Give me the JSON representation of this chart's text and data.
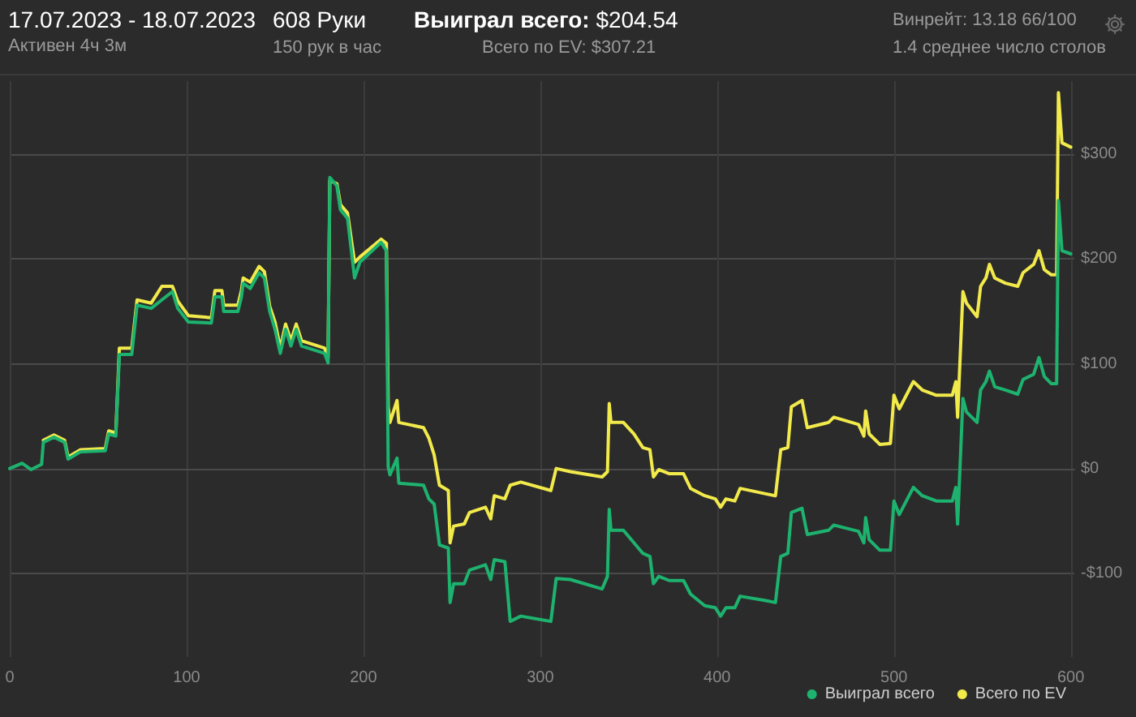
{
  "chart_data": {
    "type": "line",
    "title": "17.07.2023 - 18.07.2023",
    "subtitle": "Активен 4ч 3м",
    "annotations": [
      "608 Руки",
      "150 рук в час",
      "Выиграл всего: $204.54",
      "Всего по EV: $307.21",
      "Винрейт: 13.18 66/100",
      "1.4 среднее число столов"
    ],
    "x": [
      0,
      7,
      12,
      18,
      19,
      25,
      31,
      33,
      40,
      54,
      56,
      60,
      62,
      69,
      72,
      80,
      86,
      92,
      95,
      101,
      114,
      116,
      120,
      121,
      129,
      131,
      132,
      136,
      141,
      144,
      147,
      150,
      153,
      156,
      159,
      162,
      165,
      178,
      180,
      181,
      185,
      187,
      191,
      195,
      198,
      210,
      213,
      214,
      215,
      219,
      220,
      234,
      237,
      240,
      243,
      248,
      249,
      251,
      257,
      260,
      269,
      272,
      274,
      280,
      283,
      289,
      306,
      309,
      317,
      335,
      338,
      339,
      340,
      347,
      353,
      358,
      362,
      364,
      367,
      373,
      381,
      385,
      393,
      399,
      402,
      405,
      410,
      413,
      427,
      433,
      436,
      440,
      442,
      448,
      451,
      463,
      466,
      480,
      483,
      484,
      486,
      492,
      498,
      500,
      503,
      507,
      511,
      516,
      524,
      533,
      535,
      536,
      539,
      541,
      547,
      549,
      552,
      554,
      557,
      563,
      570,
      573,
      579,
      582,
      585,
      589,
      592,
      593,
      595,
      600
    ],
    "series": [
      {
        "name": "Выиграл всего",
        "color": "#1db36f",
        "values": [
          0,
          5,
          -1,
          4,
          25,
          30,
          25,
          9,
          16,
          17,
          33,
          31,
          109,
          109,
          156,
          153,
          161,
          169,
          153,
          140,
          139,
          164,
          164,
          150,
          150,
          164,
          177,
          172,
          187,
          182,
          150,
          133,
          110,
          133,
          117,
          133,
          117,
          110,
          101,
          278,
          270,
          247,
          239,
          182,
          197,
          216,
          208,
          2,
          -6,
          10,
          -14,
          -16,
          -29,
          -34,
          -73,
          -76,
          -128,
          -110,
          -110,
          -97,
          -92,
          -106,
          -87,
          -89,
          -146,
          -141,
          -146,
          -105,
          -106,
          -115,
          -103,
          -39,
          -59,
          -59,
          -71,
          -81,
          -84,
          -110,
          -103,
          -107,
          -107,
          -120,
          -131,
          -133,
          -141,
          -133,
          -133,
          -122,
          -126,
          -128,
          -84,
          -81,
          -42,
          -38,
          -63,
          -59,
          -54,
          -60,
          -71,
          -47,
          -68,
          -78,
          -78,
          -31,
          -44,
          -31,
          -18,
          -26,
          -31,
          -31,
          -18,
          -53,
          67,
          54,
          44,
          75,
          83,
          93,
          78,
          75,
          71,
          85,
          90,
          106,
          88,
          81,
          81,
          256,
          208,
          205
        ]
      },
      {
        "name": "Всего по EV",
        "color": "#f2ea4b",
        "values": [
          null,
          null,
          null,
          null,
          27,
          32,
          27,
          11,
          18,
          19,
          36,
          34,
          115,
          115,
          161,
          158,
          174,
          174,
          160,
          146,
          144,
          170,
          170,
          156,
          156,
          170,
          182,
          178,
          193,
          188,
          155,
          140,
          115,
          138,
          122,
          138,
          122,
          115,
          106,
          275,
          272,
          252,
          244,
          197,
          202,
          219,
          215,
          59,
          44,
          65,
          44,
          39,
          29,
          13,
          -16,
          -21,
          -71,
          -55,
          -53,
          -42,
          -37,
          -48,
          -26,
          -29,
          -16,
          -13,
          -21,
          0,
          -3,
          -8,
          -3,
          62,
          44,
          44,
          33,
          20,
          18,
          -8,
          -1,
          -5,
          -5,
          -19,
          -26,
          -29,
          -37,
          -29,
          -31,
          -19,
          -24,
          -26,
          18,
          20,
          59,
          65,
          39,
          44,
          49,
          42,
          31,
          55,
          33,
          23,
          24,
          70,
          57,
          70,
          83,
          75,
          70,
          70,
          83,
          49,
          169,
          158,
          145,
          174,
          182,
          195,
          182,
          177,
          174,
          187,
          195,
          208,
          190,
          185,
          185,
          359,
          311,
          307
        ]
      }
    ],
    "xlim": [
      0,
      602
    ],
    "xticks": [
      0,
      100,
      200,
      300,
      400,
      500,
      600
    ],
    "ylim": [
      -180,
      370
    ],
    "yticks": [
      {
        "value": -100,
        "label": "-$100"
      },
      {
        "value": 0,
        "label": "$0"
      },
      {
        "value": 100,
        "label": "$100"
      },
      {
        "value": 200,
        "label": "$200"
      },
      {
        "value": 300,
        "label": "$300"
      }
    ],
    "grid": true,
    "legend": "bottom right",
    "marker": "none",
    "line_style": "solid"
  }
}
